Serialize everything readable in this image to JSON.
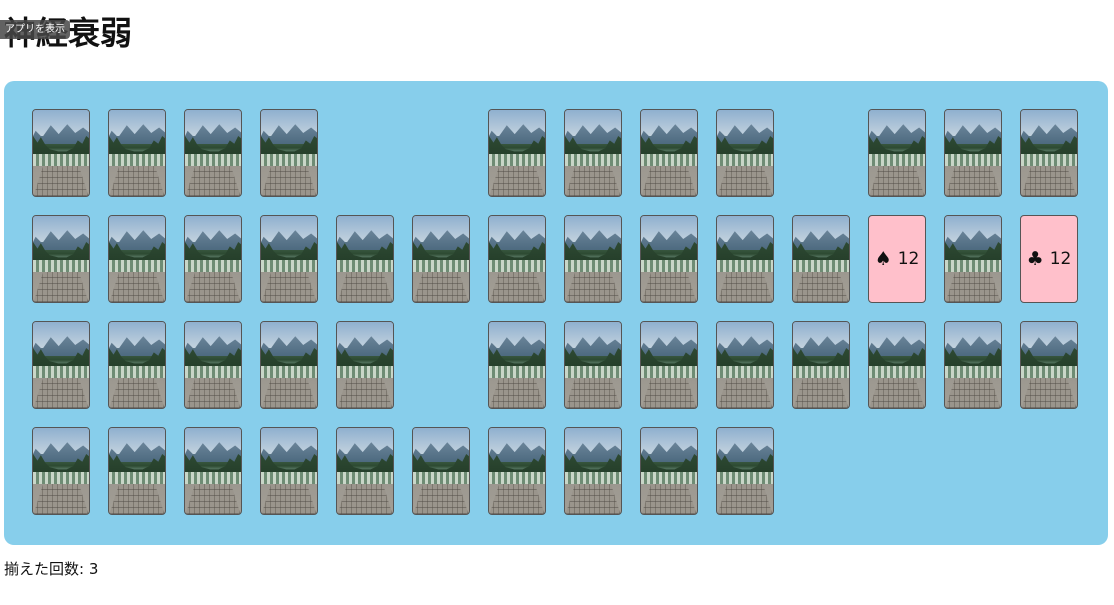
{
  "app_badge": "アプリを表示",
  "title": "神経衰弱",
  "score": {
    "label": "揃えた回数: 3"
  },
  "board": {
    "columns": 14,
    "rows": [
      [
        "back",
        "back",
        "back",
        "back",
        "empty",
        "empty",
        "back",
        "back",
        "back",
        "back",
        "empty",
        "back",
        "back",
        "back"
      ],
      [
        "back",
        "back",
        "back",
        "back",
        "back",
        "back",
        "back",
        "back",
        "back",
        "back",
        "back",
        {
          "suit": "♠",
          "rank": "12"
        },
        "back",
        {
          "suit": "♣",
          "rank": "12"
        }
      ],
      [
        "back",
        "back",
        "back",
        "back",
        "back",
        "empty",
        "back",
        "back",
        "back",
        "back",
        "back",
        "back",
        "back",
        "back"
      ],
      [
        "back",
        "back",
        "back",
        "back",
        "back",
        "back",
        "back",
        "back",
        "back",
        "back",
        "empty",
        "empty",
        "empty",
        "empty"
      ]
    ]
  }
}
